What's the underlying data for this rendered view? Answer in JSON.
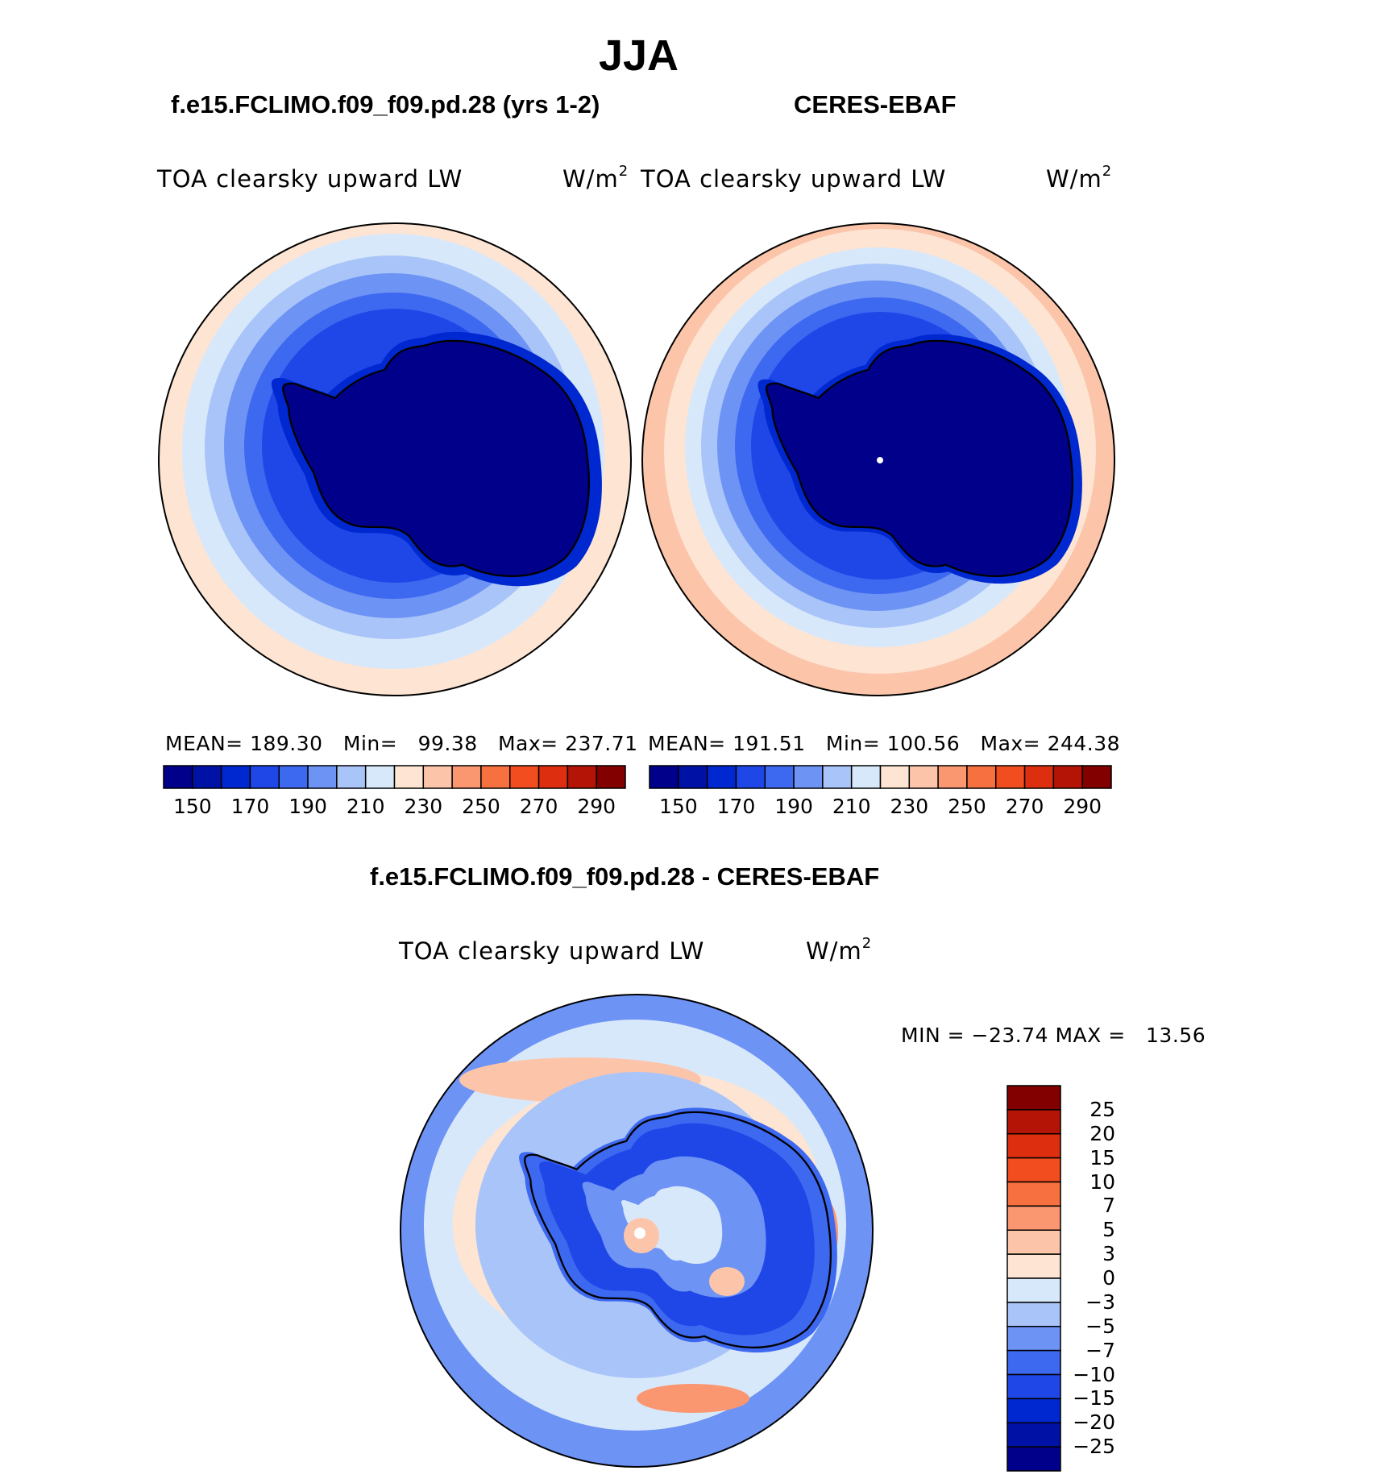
{
  "title": "JJA",
  "panels": [
    {
      "case_title": "f.e15.FCLIMO.f09_f09.pd.28 (yrs 1-2)",
      "variable": "TOA clearsky upward LW",
      "units": "W/m",
      "units_exp": "2",
      "mean_label": "MEAN=",
      "mean": "189.30",
      "min_label": "Min=",
      "min": "99.38",
      "max_label": "Max=",
      "max": "237.71"
    },
    {
      "case_title": "CERES-EBAF",
      "variable": "TOA clearsky upward LW",
      "units": "W/m",
      "units_exp": "2",
      "mean_label": "MEAN=",
      "mean": "191.51",
      "min_label": "Min=",
      "min": "100.56",
      "max_label": "Max=",
      "max": "244.38"
    }
  ],
  "diff_panel": {
    "case_title": "f.e15.FCLIMO.f09_f09.pd.28 - CERES-EBAF",
    "variable": "TOA clearsky upward LW",
    "units": "W/m",
    "units_exp": "2",
    "min_label": "MIN =",
    "min": "−23.74",
    "max_label": "MAX =",
    "max": "13.56"
  },
  "colorbar_top": {
    "ticks": [
      "150",
      "170",
      "190",
      "210",
      "230",
      "250",
      "270",
      "290"
    ],
    "colors": [
      "#00008a",
      "#0012a6",
      "#0028d0",
      "#1f47e8",
      "#3d68f0",
      "#6d93f5",
      "#a9c4f8",
      "#d8e8fb",
      "#fde4d3",
      "#fcc5aa",
      "#fa9670",
      "#f77040",
      "#f24d1e",
      "#de2e10",
      "#b41405",
      "#820000"
    ]
  },
  "colorbar_diff": {
    "ticks": [
      "25",
      "20",
      "15",
      "10",
      "7",
      "5",
      "3",
      "0",
      "−3",
      "−5",
      "−7",
      "−10",
      "−15",
      "−20",
      "−25"
    ],
    "colors": [
      "#820000",
      "#b41405",
      "#de2e10",
      "#f24d1e",
      "#f77040",
      "#fa9670",
      "#fcc5aa",
      "#fde4d3",
      "#d8e8fb",
      "#a9c4f8",
      "#6d93f5",
      "#3d68f0",
      "#1f47e8",
      "#0028d0",
      "#0012a6",
      "#00008a"
    ]
  }
}
